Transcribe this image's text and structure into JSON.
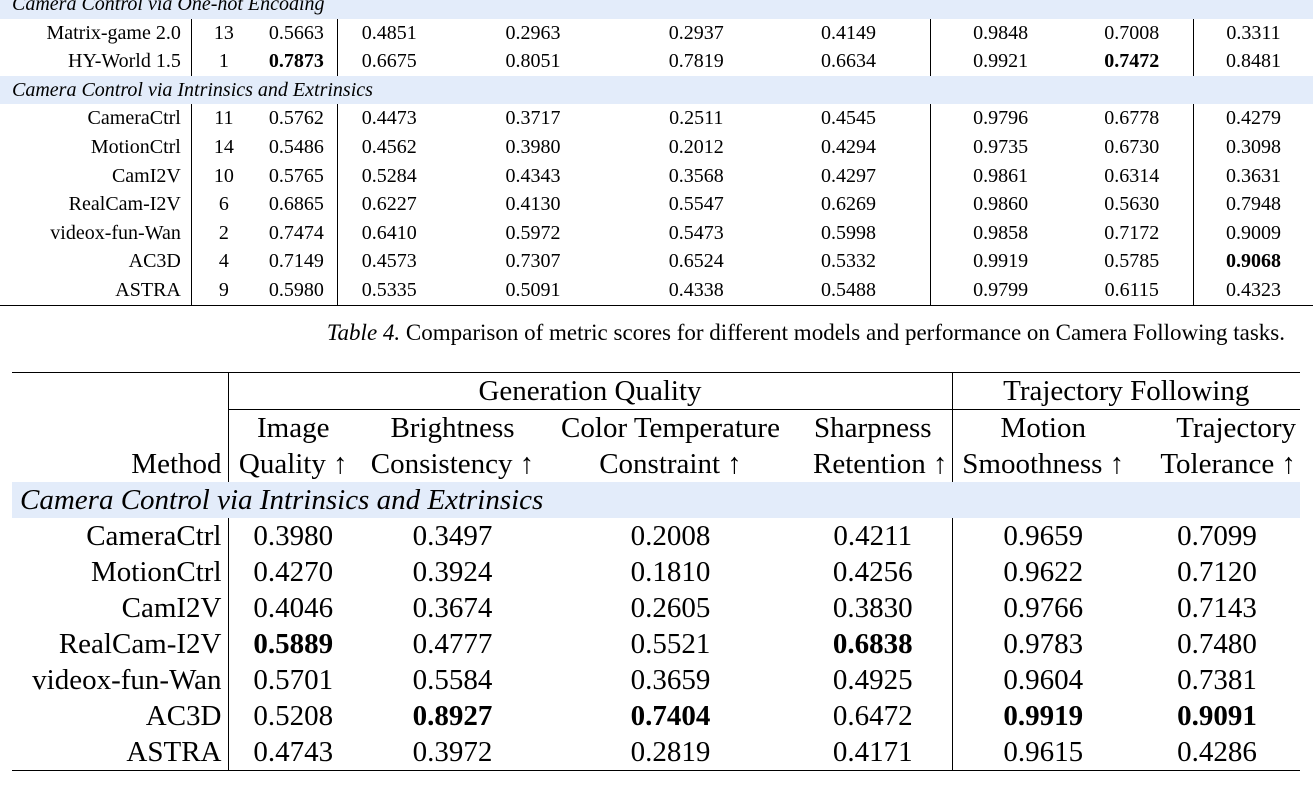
{
  "top_table": {
    "section_a": "Camera Control via One-hot Encoding",
    "rows_a": [
      {
        "method": "Matrix-game 2.0",
        "rank": "13",
        "c1": "0.5663",
        "c2": "0.4851",
        "c3": "0.2963",
        "c4": "0.2937",
        "c5": "0.4149",
        "c6": "0.9848",
        "c7": "0.7008",
        "c8": "0.3311"
      },
      {
        "method": "HY-World 1.5",
        "rank": "1",
        "c1": "0.7873",
        "c2": "0.6675",
        "c3": "0.8051",
        "c4": "0.7819",
        "c5": "0.6634",
        "c6": "0.9921",
        "c7": "0.7472",
        "c8": "0.8481"
      }
    ],
    "section_b": "Camera Control via Intrinsics and Extrinsics",
    "rows_b": [
      {
        "method": "CameraCtrl",
        "rank": "11",
        "c1": "0.5762",
        "c2": "0.4473",
        "c3": "0.3717",
        "c4": "0.2511",
        "c5": "0.4545",
        "c6": "0.9796",
        "c7": "0.6778",
        "c8": "0.4279"
      },
      {
        "method": "MotionCtrl",
        "rank": "14",
        "c1": "0.5486",
        "c2": "0.4562",
        "c3": "0.3980",
        "c4": "0.2012",
        "c5": "0.4294",
        "c6": "0.9735",
        "c7": "0.6730",
        "c8": "0.3098"
      },
      {
        "method": "CamI2V",
        "rank": "10",
        "c1": "0.5765",
        "c2": "0.5284",
        "c3": "0.4343",
        "c4": "0.3568",
        "c5": "0.4297",
        "c6": "0.9861",
        "c7": "0.6314",
        "c8": "0.3631"
      },
      {
        "method": "RealCam-I2V",
        "rank": "6",
        "c1": "0.6865",
        "c2": "0.6227",
        "c3": "0.4130",
        "c4": "0.5547",
        "c5": "0.6269",
        "c6": "0.9860",
        "c7": "0.5630",
        "c8": "0.7948"
      },
      {
        "method": "videox-fun-Wan",
        "rank": "2",
        "c1": "0.7474",
        "c2": "0.6410",
        "c3": "0.5972",
        "c4": "0.5473",
        "c5": "0.5998",
        "c6": "0.9858",
        "c7": "0.7172",
        "c8": "0.9009"
      },
      {
        "method": "AC3D",
        "rank": "4",
        "c1": "0.7149",
        "c2": "0.4573",
        "c3": "0.7307",
        "c4": "0.6524",
        "c5": "0.5332",
        "c6": "0.9919",
        "c7": "0.5785",
        "c8": "0.9068"
      },
      {
        "method": "ASTRA",
        "rank": "9",
        "c1": "0.5980",
        "c2": "0.5335",
        "c3": "0.5091",
        "c4": "0.4338",
        "c5": "0.5488",
        "c6": "0.9799",
        "c7": "0.6115",
        "c8": "0.4323"
      }
    ]
  },
  "caption": {
    "label": "Table 4.",
    "text": "Comparison of metric scores for different models and performance on Camera Following tasks."
  },
  "table4": {
    "group_generation": "Generation Quality",
    "group_trajectory": "Trajectory Following",
    "headers": {
      "method": "Method",
      "image_1": "Image",
      "image_2": "Quality ↑",
      "bright_1": "Brightness",
      "bright_2": "Consistency ↑",
      "color_1": "Color Temperature",
      "color_2": "Constraint ↑",
      "sharp_1": "Sharpness",
      "sharp_2": "Retention ↑",
      "motion_1": "Motion",
      "motion_2": "Smoothness ↑",
      "traj_1": "Trajectory",
      "traj_2": "Tolerance ↑"
    },
    "section": "Camera Control via Intrinsics and Extrinsics",
    "rows": [
      {
        "method": "CameraCtrl",
        "image": "0.3980",
        "bright": "0.3497",
        "color": "0.2008",
        "sharp": "0.4211",
        "motion": "0.9659",
        "traj": "0.7099"
      },
      {
        "method": "MotionCtrl",
        "image": "0.4270",
        "bright": "0.3924",
        "color": "0.1810",
        "sharp": "0.4256",
        "motion": "0.9622",
        "traj": "0.7120"
      },
      {
        "method": "CamI2V",
        "image": "0.4046",
        "bright": "0.3674",
        "color": "0.2605",
        "sharp": "0.3830",
        "motion": "0.9766",
        "traj": "0.7143"
      },
      {
        "method": "RealCam-I2V",
        "image": "0.5889",
        "bright": "0.4777",
        "color": "0.5521",
        "sharp": "0.6838",
        "motion": "0.9783",
        "traj": "0.7480"
      },
      {
        "method": "videox-fun-Wan",
        "image": "0.5701",
        "bright": "0.5584",
        "color": "0.3659",
        "sharp": "0.4925",
        "motion": "0.9604",
        "traj": "0.7381"
      },
      {
        "method": "AC3D",
        "image": "0.5208",
        "bright": "0.8927",
        "color": "0.7404",
        "sharp": "0.6472",
        "motion": "0.9919",
        "traj": "0.9091"
      },
      {
        "method": "ASTRA",
        "image": "0.4743",
        "bright": "0.3972",
        "color": "0.2819",
        "sharp": "0.4171",
        "motion": "0.9615",
        "traj": "0.4286"
      }
    ]
  }
}
